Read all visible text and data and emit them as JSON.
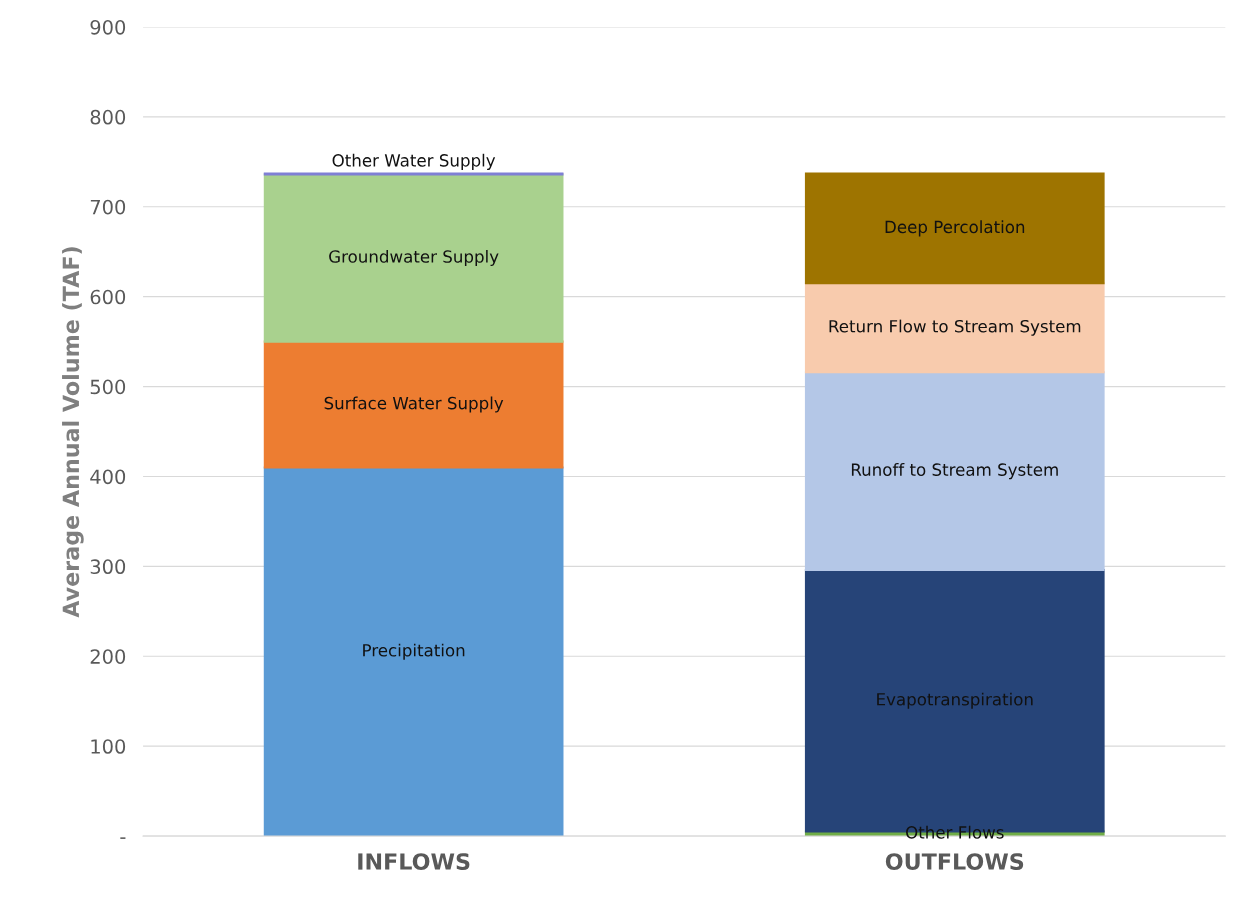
{
  "chart_data": {
    "type": "bar",
    "stacked": true,
    "ylabel": "Average Annual Volume (TAF)",
    "categories": [
      "INFLOWS",
      "OUTFLOWS"
    ],
    "series": [
      {
        "name": "Precipitation",
        "color": "#5b9bd5",
        "values": [
          410,
          null
        ]
      },
      {
        "name": "Other Flows",
        "color": "#70ad47",
        "values": [
          null,
          5
        ]
      },
      {
        "name": "Surface Water Supply",
        "color": "#ed7d31",
        "values": [
          140,
          null
        ]
      },
      {
        "name": "Evapotranspiration",
        "color": "#264478",
        "values": [
          null,
          291
        ]
      },
      {
        "name": "Groundwater Supply",
        "color": "#a9d18e",
        "values": [
          186,
          null
        ]
      },
      {
        "name": "Runoff to Stream System",
        "color": "#b4c7e7",
        "values": [
          null,
          220
        ]
      },
      {
        "name": "Other Water Supply",
        "color": "#7f7fd5",
        "values": [
          1,
          null
        ]
      },
      {
        "name": "Return Flow to Stream System",
        "color": "#f8cbad",
        "values": [
          null,
          99
        ]
      },
      {
        "name": "Deep Percolation",
        "color": "#9e7400",
        "values": [
          null,
          122
        ]
      }
    ],
    "ylim": [
      0,
      900
    ],
    "yticks": [
      {
        "value": 0,
        "label": "-"
      },
      100,
      200,
      300,
      400,
      500,
      600,
      700,
      800,
      900
    ],
    "grid": "y"
  }
}
